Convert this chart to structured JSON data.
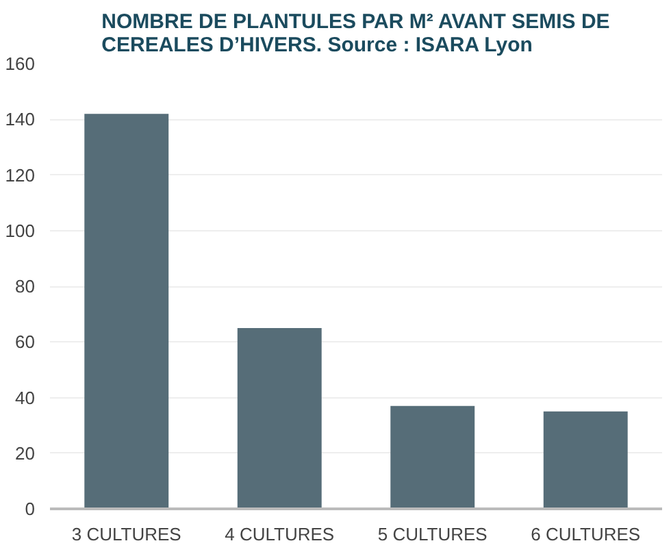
{
  "chart_data": {
    "type": "bar",
    "title": "NOMBRE DE PLANTULES PAR M² AVANT SEMIS DE\nCEREALES D’HIVERS. Source : ISARA Lyon",
    "categories": [
      "3 CULTURES",
      "4 CULTURES",
      "5 CULTURES",
      "6 CULTURES"
    ],
    "values": [
      142,
      65,
      37,
      35
    ],
    "color": "#566d78",
    "ylim": [
      0,
      160
    ],
    "yticks": [
      0,
      20,
      40,
      60,
      80,
      100,
      120,
      140,
      160
    ],
    "grid": "y"
  }
}
